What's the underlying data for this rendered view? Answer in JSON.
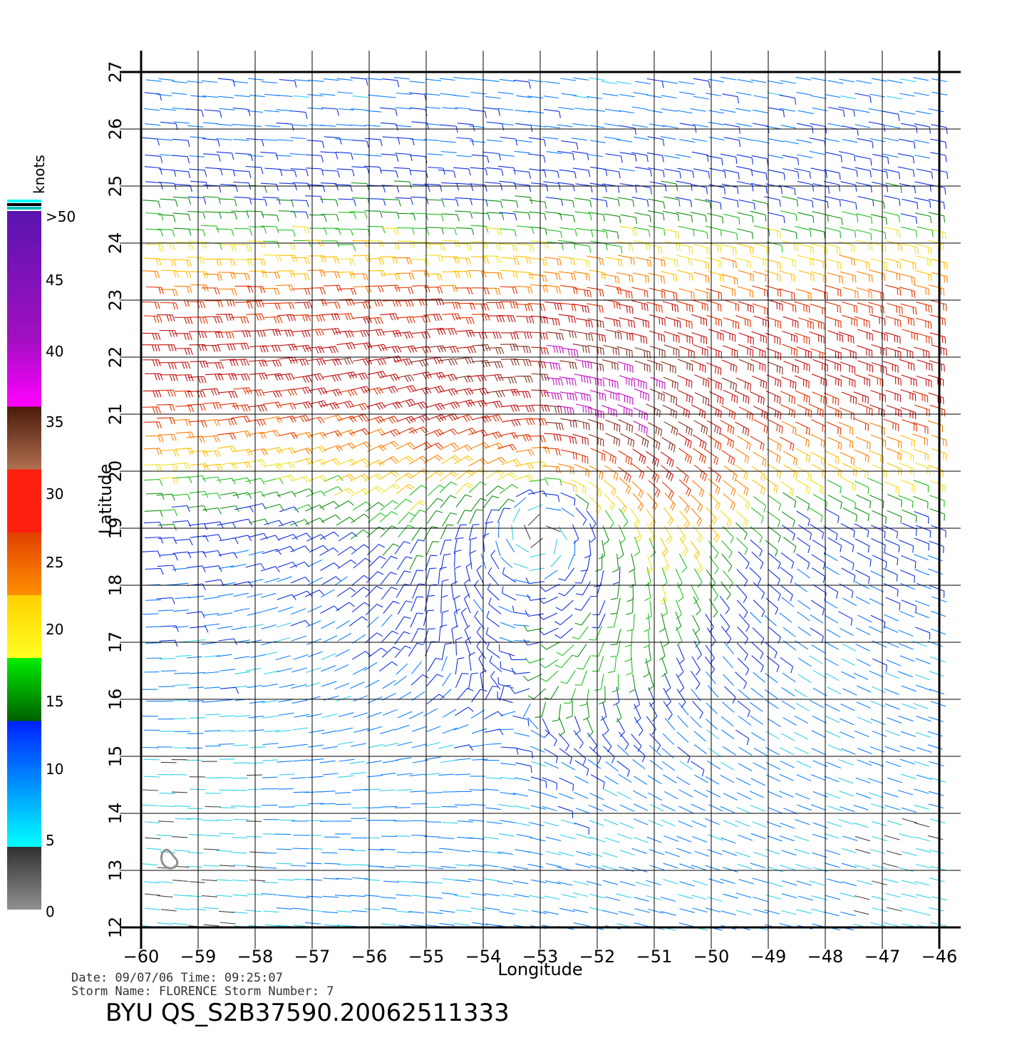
{
  "chart_data": {
    "type": "scatter",
    "title": "",
    "xlabel": "Longitude",
    "ylabel": "Latitude",
    "xlim": [
      -60,
      -46
    ],
    "ylim": [
      12,
      27
    ],
    "x_ticks": [
      "−60",
      "−59",
      "−58",
      "−57",
      "−56",
      "−55",
      "−54",
      "−53",
      "−52",
      "−51",
      "−50",
      "−49",
      "−48",
      "−47",
      "−46"
    ],
    "y_ticks": [
      "12",
      "13",
      "14",
      "15",
      "16",
      "17",
      "18",
      "19",
      "20",
      "21",
      "22",
      "23",
      "24",
      "25",
      "26",
      "27"
    ],
    "grid": true,
    "legend": {
      "title": "knots",
      "placement": "left",
      "labels": [
        ">50",
        "45",
        "40",
        "35",
        "30",
        "25",
        "20",
        "15",
        "10",
        "5",
        "0"
      ],
      "colors": [
        "#5a14b0",
        "#a010c0",
        "#ff00ff",
        "#4a1a0a",
        "#b07050",
        "#ff2010",
        "#e04000",
        "#ff9000",
        "#ffd000",
        "#ffff20",
        "#00ee00",
        "#006000",
        "#0020ff",
        "#0090ff",
        "#00ffff",
        "#303030",
        "#909090"
      ]
    },
    "storm_center": {
      "lon": -53.0,
      "lat": 18.9
    },
    "series": [
      {
        "name": "wind barbs"
      }
    ]
  },
  "caption": {
    "date_line": "Date: 09/07/06   Time: 09:25:07",
    "storm_line": "Storm  Name: FLORENCE    Storm  Number: 7",
    "file_id": "BYU  QS_S2B37590.20062511333"
  },
  "colors": {
    "grid": "#000000",
    "coast": "#909090"
  }
}
